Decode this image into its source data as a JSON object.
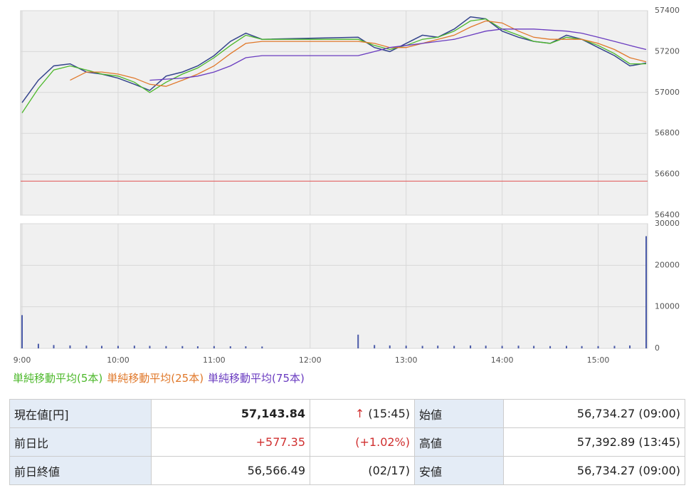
{
  "chart_data": [
    {
      "type": "line",
      "x": [
        9,
        9.17,
        9.33,
        9.5,
        9.67,
        9.83,
        10,
        10.17,
        10.33,
        10.5,
        10.67,
        10.83,
        11,
        11.17,
        11.33,
        11.5,
        12.5,
        12.67,
        12.83,
        13,
        13.17,
        13.33,
        13.5,
        13.67,
        13.83,
        14,
        14.17,
        14.33,
        14.5,
        14.67,
        14.83,
        15,
        15.17,
        15.33,
        15.5
      ],
      "price": {
        "color": "#34448c",
        "values": [
          56950,
          57060,
          57130,
          57140,
          57100,
          57090,
          57070,
          57040,
          57010,
          57080,
          57100,
          57130,
          57180,
          57250,
          57290,
          57260,
          57270,
          57220,
          57200,
          57240,
          57280,
          57270,
          57310,
          57370,
          57360,
          57300,
          57270,
          57250,
          57240,
          57280,
          57260,
          57220,
          57180,
          57130,
          57144
        ]
      },
      "series": [
        {
          "name": "単純移動平均(5本)",
          "color": "#4cb82a",
          "values": [
            56900,
            57020,
            57110,
            57130,
            57110,
            57090,
            57080,
            57050,
            57000,
            57050,
            57090,
            57120,
            57170,
            57230,
            57280,
            57260,
            57260,
            57230,
            57210,
            57230,
            57260,
            57270,
            57300,
            57350,
            57360,
            57310,
            57280,
            57250,
            57240,
            57270,
            57260,
            57230,
            57190,
            57140,
            57140
          ]
        },
        {
          "name": "単純移動平均(25本)",
          "color": "#e0782a",
          "values": [
            null,
            null,
            null,
            57060,
            57100,
            57100,
            57090,
            57070,
            57040,
            57030,
            57060,
            57090,
            57130,
            57190,
            57240,
            57250,
            57250,
            57240,
            57220,
            57220,
            57240,
            57260,
            57280,
            57320,
            57350,
            57340,
            57300,
            57270,
            57260,
            57260,
            57260,
            57240,
            57210,
            57170,
            57150
          ]
        },
        {
          "name": "単純移動平均(75本)",
          "color": "#6a3cc0",
          "values": [
            null,
            null,
            null,
            null,
            null,
            null,
            null,
            null,
            57060,
            57065,
            57070,
            57080,
            57100,
            57130,
            57170,
            57180,
            57180,
            57200,
            57220,
            57230,
            57240,
            57250,
            57260,
            57280,
            57300,
            57310,
            57310,
            57310,
            57305,
            57300,
            57290,
            57270,
            57250,
            57230,
            57210
          ]
        }
      ],
      "reference_line": {
        "value": 56566.49,
        "color": "#e05050"
      },
      "xlim": [
        9,
        15.5
      ],
      "xticks": [
        9,
        10,
        11,
        12,
        13,
        14,
        15
      ],
      "ylim": [
        56400,
        57400
      ],
      "yticks": [
        56400,
        56600,
        56800,
        57000,
        57200,
        57400
      ],
      "grid": true
    },
    {
      "type": "bar",
      "color": "#4a5aa8",
      "x": [
        9,
        9.17,
        9.33,
        9.5,
        9.67,
        9.83,
        10,
        10.17,
        10.33,
        10.5,
        10.67,
        10.83,
        11,
        11.17,
        11.33,
        11.5,
        12.5,
        12.67,
        12.83,
        13,
        13.17,
        13.33,
        13.5,
        13.67,
        13.83,
        14,
        14.17,
        14.33,
        14.5,
        14.67,
        14.83,
        15,
        15.17,
        15.33,
        15.5
      ],
      "values": [
        8000,
        1100,
        800,
        700,
        650,
        600,
        600,
        650,
        600,
        550,
        550,
        500,
        550,
        500,
        500,
        450,
        3300,
        800,
        700,
        650,
        600,
        650,
        600,
        700,
        650,
        600,
        650,
        600,
        550,
        600,
        550,
        550,
        600,
        700,
        27000
      ],
      "xlim": [
        9,
        15.5
      ],
      "xticks": [
        {
          "value": 9,
          "label": "9:00"
        },
        {
          "value": 10,
          "label": "10:00"
        },
        {
          "value": 11,
          "label": "11:00"
        },
        {
          "value": 12,
          "label": "12:00"
        },
        {
          "value": 13,
          "label": "13:00"
        },
        {
          "value": 14,
          "label": "14:00"
        },
        {
          "value": 15,
          "label": "15:00"
        }
      ],
      "ylim": [
        0,
        30000
      ],
      "yticks": [
        0,
        10000,
        20000,
        30000
      ],
      "grid": true
    }
  ],
  "table": {
    "rows": [
      [
        "現在値[円]",
        "57,143.84",
        "↑",
        "(15:45)",
        "始値",
        "56,734.27 (09:00)"
      ],
      [
        "前日比",
        "+577.35",
        "(+1.02%)",
        "",
        "高値",
        "57,392.89 (13:45)"
      ],
      [
        "前日終値",
        "56,566.49",
        "(02/17)",
        "",
        "安値",
        "56,734.27 (09:00)"
      ]
    ]
  }
}
